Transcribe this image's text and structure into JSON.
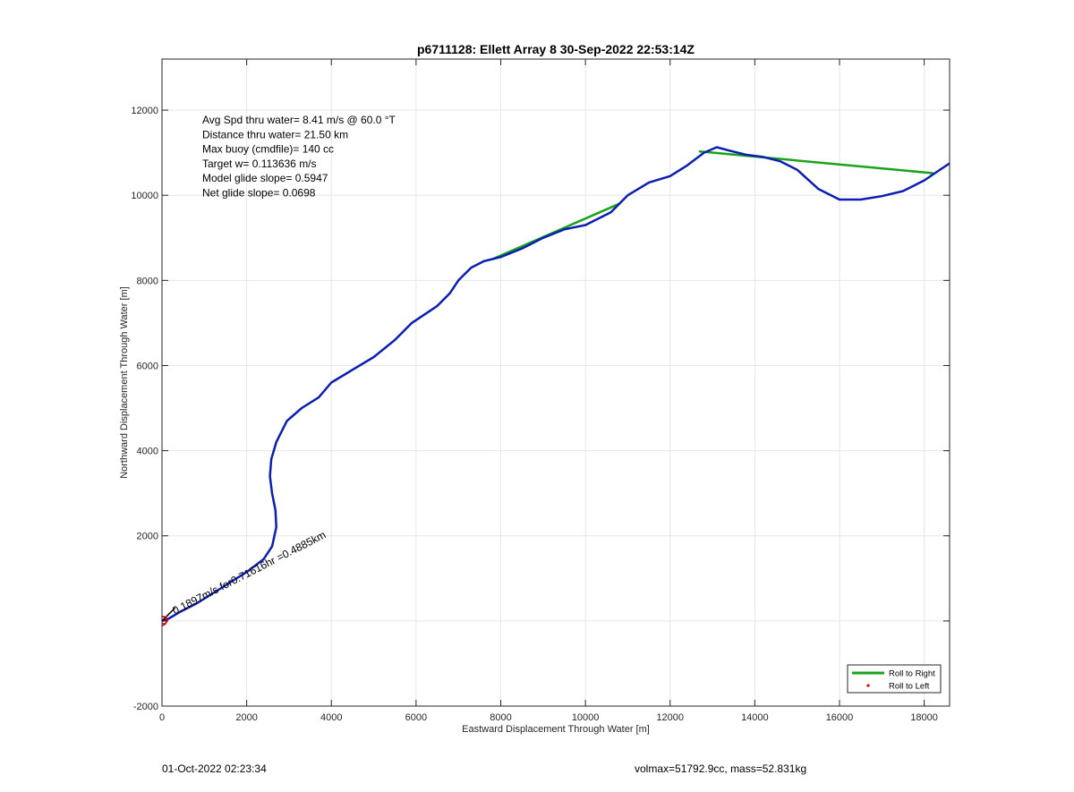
{
  "chart_data": {
    "type": "line",
    "title": "p6711128: Ellett Array 8 30-Sep-2022 22:53:14Z",
    "xlabel": "Eastward Displacement Through Water [m]",
    "ylabel": "Northward Displacement Through Water [m]",
    "xlim": [
      0,
      18600
    ],
    "ylim": [
      -2000,
      13200
    ],
    "xticks": [
      0,
      2000,
      4000,
      6000,
      8000,
      10000,
      12000,
      14000,
      16000,
      18000
    ],
    "yticks": [
      -2000,
      2000,
      4000,
      6000,
      8000,
      10000,
      12000
    ],
    "grid": true,
    "legend_position": "bottom-right",
    "legend": [
      {
        "label": "Roll to Right",
        "color": "#1aa31a"
      },
      {
        "label": "Roll to Left",
        "color": "#e00000"
      }
    ],
    "stats_lines": [
      "Avg Spd thru water=  8.41 m/s @  60.0 °T",
      "Distance thru water= 21.50 km",
      "Max buoy (cmdfile)= 140 cc",
      "Target w= 0.113636 m/s",
      "Model glide slope= 0.5947",
      "Net glide slope= 0.0698"
    ],
    "annotation": {
      "text": "0.1897m/s for0.71616hr =0.4885km",
      "x": 300,
      "y": 150
    },
    "series": [
      {
        "name": "Roll to Right",
        "color": "#1aa31a",
        "segments": [
          {
            "x": [
              7800,
              10800
            ],
            "y": [
              8500,
              9800
            ]
          },
          {
            "x": [
              12700,
              18200
            ],
            "y": [
              11030,
              10520
            ]
          }
        ]
      },
      {
        "color": "#0a1eb4",
        "x": [
          0,
          150,
          400,
          800,
          1200,
          1600,
          2000,
          2400,
          2600,
          2700,
          2680,
          2600,
          2550,
          2580,
          2700,
          2950,
          3300,
          3700,
          4000,
          4500,
          5000,
          5500,
          5900,
          6200,
          6500,
          6800,
          7000,
          7300,
          7600,
          8000,
          8500,
          9000,
          9500,
          10000,
          10300,
          10600,
          11000,
          11500,
          12000,
          12400,
          12800,
          13100,
          13400,
          13800,
          14200,
          14600,
          15000,
          15500,
          16000,
          16500,
          17000,
          17500,
          18000,
          18300,
          18600
        ],
        "y": [
          0,
          50,
          200,
          400,
          650,
          900,
          1150,
          1450,
          1750,
          2200,
          2600,
          3000,
          3400,
          3800,
          4200,
          4700,
          5000,
          5250,
          5600,
          5900,
          6200,
          6600,
          7000,
          7200,
          7400,
          7700,
          8000,
          8300,
          8450,
          8550,
          8750,
          9000,
          9200,
          9300,
          9450,
          9600,
          10000,
          10300,
          10450,
          10700,
          11000,
          11130,
          11050,
          10950,
          10900,
          10800,
          10600,
          10150,
          9900,
          9900,
          9980,
          10100,
          10350,
          10550,
          10750
        ]
      },
      {
        "color": "#000000",
        "x": [
          0,
          60,
          120,
          180,
          240,
          300
        ],
        "y": [
          0,
          60,
          120,
          180,
          240,
          300
        ]
      }
    ]
  },
  "footer": {
    "timestamp": "01-Oct-2022 02:23:34",
    "summary": "volmax=51792.9cc, mass=52.831kg"
  }
}
